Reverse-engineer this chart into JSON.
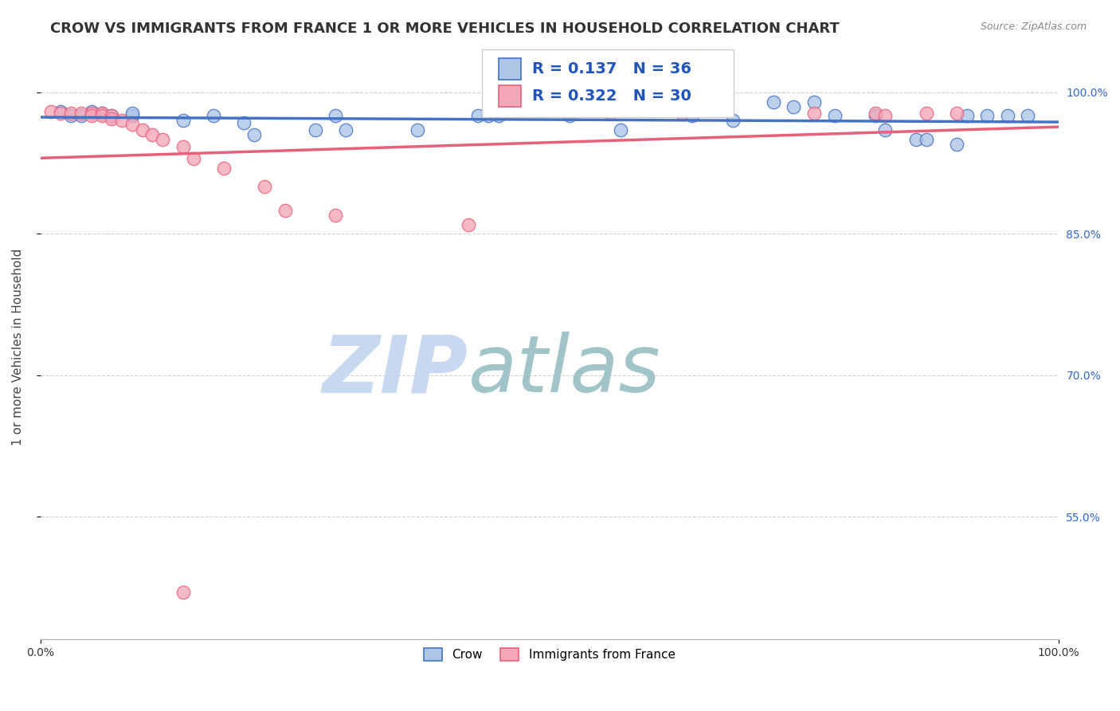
{
  "title": "CROW VS IMMIGRANTS FROM FRANCE 1 OR MORE VEHICLES IN HOUSEHOLD CORRELATION CHART",
  "source": "Source: ZipAtlas.com",
  "ylabel": "1 or more Vehicles in Household",
  "xlabel_bottom_left": "0.0%",
  "xlabel_bottom_right": "100.0%",
  "ylabel_right_labels": [
    "100.0%",
    "85.0%",
    "70.0%",
    "55.0%"
  ],
  "ylabel_right_values": [
    1.0,
    0.85,
    0.7,
    0.55
  ],
  "xmin": 0.0,
  "xmax": 1.0,
  "ymin": 0.42,
  "ymax": 1.04,
  "legend_blue_R": "R = 0.137",
  "legend_blue_N": "N = 36",
  "legend_pink_R": "R = 0.322",
  "legend_pink_N": "N = 30",
  "legend_label_blue": "Crow",
  "legend_label_pink": "Immigrants from France",
  "blue_scatter_x": [
    0.02,
    0.03,
    0.05,
    0.04,
    0.06,
    0.07,
    0.09,
    0.09,
    0.14,
    0.17,
    0.2,
    0.21,
    0.27,
    0.3,
    0.29,
    0.37,
    0.43,
    0.44,
    0.45,
    0.52,
    0.64,
    0.72,
    0.74,
    0.76,
    0.82,
    0.83,
    0.86,
    0.91,
    0.93,
    0.95,
    0.97,
    0.57,
    0.68,
    0.78,
    0.87,
    0.9
  ],
  "blue_scatter_y": [
    0.98,
    0.975,
    0.98,
    0.975,
    0.978,
    0.975,
    0.975,
    0.978,
    0.97,
    0.975,
    0.968,
    0.955,
    0.96,
    0.96,
    0.975,
    0.96,
    0.975,
    0.975,
    0.975,
    0.975,
    0.975,
    0.99,
    0.985,
    0.99,
    0.975,
    0.96,
    0.95,
    0.975,
    0.975,
    0.975,
    0.975,
    0.96,
    0.97,
    0.975,
    0.95,
    0.945
  ],
  "pink_scatter_x": [
    0.01,
    0.02,
    0.03,
    0.04,
    0.05,
    0.05,
    0.06,
    0.06,
    0.07,
    0.07,
    0.08,
    0.09,
    0.1,
    0.11,
    0.12,
    0.14,
    0.15,
    0.18,
    0.22,
    0.24,
    0.29,
    0.42,
    0.63,
    0.76,
    0.82,
    0.83,
    0.87,
    0.9,
    0.14,
    0.56
  ],
  "pink_scatter_y": [
    0.98,
    0.978,
    0.978,
    0.978,
    0.978,
    0.975,
    0.978,
    0.975,
    0.975,
    0.972,
    0.97,
    0.966,
    0.96,
    0.955,
    0.95,
    0.942,
    0.93,
    0.92,
    0.9,
    0.875,
    0.87,
    0.86,
    0.978,
    0.978,
    0.978,
    0.975,
    0.978,
    0.978,
    0.47,
    0.978
  ],
  "blue_line_color": "#4472c4",
  "pink_line_color": "#e8607a",
  "blue_scatter_color": "#adc6e8",
  "pink_scatter_color": "#f4a8b8",
  "grid_color": "#cccccc",
  "watermark_zip": "ZIP",
  "watermark_atlas": "atlas",
  "watermark_color_zip": "#c8d8f0",
  "watermark_color_atlas": "#a0c4c8",
  "background_color": "#ffffff",
  "title_fontsize": 13,
  "axis_label_fontsize": 11,
  "tick_fontsize": 10,
  "legend_fontsize": 13
}
